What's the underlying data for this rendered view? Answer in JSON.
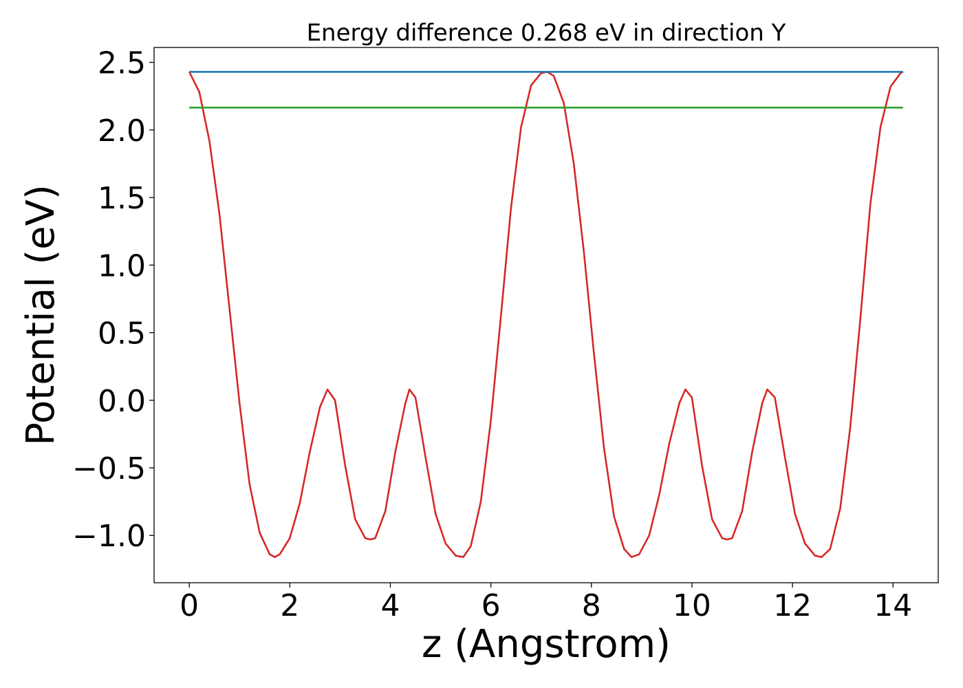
{
  "chart_data": {
    "type": "line",
    "title": "Energy difference 0.268 eV in direction Y",
    "xlabel": "z (Angstrom)",
    "ylabel": "Potential (eV)",
    "xlim": [
      -0.7,
      14.9
    ],
    "ylim": [
      -1.35,
      2.61
    ],
    "x_ticks": [
      0,
      2,
      4,
      6,
      8,
      10,
      12,
      14
    ],
    "x_tick_labels": [
      "0",
      "2",
      "4",
      "6",
      "8",
      "10",
      "12",
      "14"
    ],
    "y_ticks": [
      -1.0,
      -0.5,
      0.0,
      0.5,
      1.0,
      1.5,
      2.0,
      2.5
    ],
    "y_tick_labels": [
      "−1.0",
      "−0.5",
      "0.0",
      "0.5",
      "1.0",
      "1.5",
      "2.0",
      "2.5"
    ],
    "grid": false,
    "series": [
      {
        "color": "#d62728",
        "x": [
          0.0,
          0.2,
          0.4,
          0.6,
          0.8,
          1.0,
          1.2,
          1.4,
          1.6,
          1.7,
          1.8,
          2.0,
          2.2,
          2.4,
          2.6,
          2.75,
          2.9,
          3.1,
          3.3,
          3.5,
          3.6,
          3.7,
          3.9,
          4.1,
          4.3,
          4.38,
          4.5,
          4.7,
          4.9,
          5.1,
          5.3,
          5.45,
          5.6,
          5.8,
          6.0,
          6.2,
          6.4,
          6.6,
          6.8,
          7.0,
          7.12,
          7.25,
          7.45,
          7.65,
          7.85,
          8.05,
          8.25,
          8.45,
          8.65,
          8.8,
          8.95,
          9.15,
          9.35,
          9.55,
          9.75,
          9.87,
          10.0,
          10.2,
          10.4,
          10.6,
          10.7,
          10.8,
          11.0,
          11.2,
          11.4,
          11.5,
          11.65,
          11.85,
          12.05,
          12.25,
          12.45,
          12.58,
          12.75,
          12.95,
          13.15,
          13.35,
          13.55,
          13.75,
          13.95,
          14.15,
          14.2
        ],
        "y": [
          2.43,
          2.28,
          1.92,
          1.38,
          0.68,
          -0.02,
          -0.62,
          -0.98,
          -1.14,
          -1.16,
          -1.14,
          -1.02,
          -0.76,
          -0.38,
          -0.05,
          0.08,
          0.0,
          -0.48,
          -0.88,
          -1.02,
          -1.03,
          -1.02,
          -0.82,
          -0.38,
          -0.02,
          0.08,
          0.02,
          -0.42,
          -0.84,
          -1.06,
          -1.15,
          -1.16,
          -1.08,
          -0.75,
          -0.15,
          0.62,
          1.42,
          2.02,
          2.33,
          2.42,
          2.43,
          2.4,
          2.2,
          1.75,
          1.1,
          0.35,
          -0.35,
          -0.86,
          -1.1,
          -1.16,
          -1.14,
          -1.0,
          -0.7,
          -0.32,
          -0.02,
          0.08,
          0.02,
          -0.48,
          -0.88,
          -1.02,
          -1.03,
          -1.02,
          -0.82,
          -0.38,
          -0.02,
          0.08,
          0.02,
          -0.42,
          -0.84,
          -1.06,
          -1.15,
          -1.16,
          -1.1,
          -0.8,
          -0.2,
          0.6,
          1.45,
          2.02,
          2.32,
          2.42,
          2.43
        ]
      },
      {
        "color": "#1f77b4",
        "x": [
          0.0,
          14.2
        ],
        "y": [
          2.43,
          2.43
        ]
      },
      {
        "color": "#2ca02c",
        "x": [
          0.0,
          14.2
        ],
        "y": [
          2.165,
          2.165
        ]
      }
    ]
  }
}
